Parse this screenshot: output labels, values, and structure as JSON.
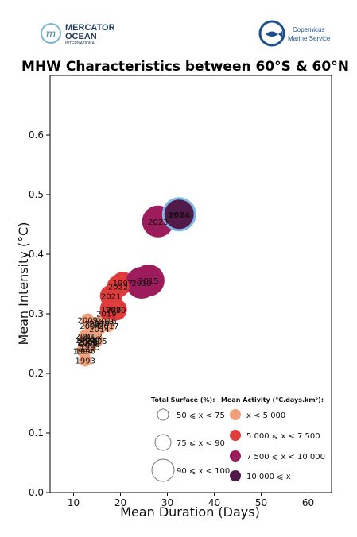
{
  "logos": {
    "mercator": {
      "line1": "MERCATOR",
      "line2": "OCEAN",
      "line3": "INTERNATIONAL"
    },
    "copernicus": {
      "line1": "Copernicus",
      "line2": "Marine Service"
    }
  },
  "chart_data": {
    "type": "scatter",
    "title": "MHW Characteristics between 60°S & 60°N",
    "xlabel": "Mean Duration (Days)",
    "ylabel": "Mean Intensity (°C)",
    "xlim": [
      5,
      65
    ],
    "ylim": [
      0,
      0.7
    ],
    "xticks": [
      10,
      20,
      30,
      40,
      50,
      60
    ],
    "yticks": [
      0.0,
      0.1,
      0.2,
      0.3,
      0.4,
      0.5,
      0.6
    ],
    "grid": false,
    "activity_colors": {
      "a1": "#f0a07a",
      "a2": "#e03c3c",
      "a3": "#9c1c5c",
      "a4": "#521a48"
    },
    "points": [
      {
        "year": "1993",
        "x": 12.5,
        "y": 0.222,
        "surface": 1,
        "activity": "a1"
      },
      {
        "year": "1994",
        "x": 12.0,
        "y": 0.238,
        "surface": 1,
        "activity": "a1"
      },
      {
        "year": "1995",
        "x": 13.5,
        "y": 0.245,
        "surface": 1,
        "activity": "a1"
      },
      {
        "year": "1996",
        "x": 12.5,
        "y": 0.238,
        "surface": 1,
        "activity": "a1"
      },
      {
        "year": "1997",
        "x": 20.5,
        "y": 0.352,
        "surface": 2,
        "activity": "a2"
      },
      {
        "year": "1998",
        "x": 18.0,
        "y": 0.308,
        "surface": 2,
        "activity": "a2"
      },
      {
        "year": "1999",
        "x": 12.5,
        "y": 0.256,
        "surface": 1,
        "activity": "a1"
      },
      {
        "year": "2000",
        "x": 13.0,
        "y": 0.253,
        "surface": 1,
        "activity": "a1"
      },
      {
        "year": "2001",
        "x": 12.5,
        "y": 0.263,
        "surface": 1,
        "activity": "a1"
      },
      {
        "year": "2002",
        "x": 13.0,
        "y": 0.254,
        "surface": 1,
        "activity": "a1"
      },
      {
        "year": "2003",
        "x": 13.0,
        "y": 0.252,
        "surface": 1,
        "activity": "a1"
      },
      {
        "year": "2004",
        "x": 13.5,
        "y": 0.28,
        "surface": 1,
        "activity": "a1"
      },
      {
        "year": "2005",
        "x": 15.0,
        "y": 0.255,
        "surface": 1,
        "activity": "a1"
      },
      {
        "year": "2006",
        "x": 13.5,
        "y": 0.258,
        "surface": 1,
        "activity": "a1"
      },
      {
        "year": "2007",
        "x": 14.5,
        "y": 0.284,
        "surface": 1,
        "activity": "a1"
      },
      {
        "year": "2008",
        "x": 13.5,
        "y": 0.25,
        "surface": 1,
        "activity": "a1"
      },
      {
        "year": "2009",
        "x": 13.0,
        "y": 0.29,
        "surface": 1,
        "activity": "a1"
      },
      {
        "year": "2010",
        "x": 24.5,
        "y": 0.352,
        "surface": 3,
        "activity": "a3"
      },
      {
        "year": "2011",
        "x": 15.5,
        "y": 0.284,
        "surface": 1,
        "activity": "a1"
      },
      {
        "year": "2012",
        "x": 14.0,
        "y": 0.263,
        "surface": 1,
        "activity": "a1"
      },
      {
        "year": "2013",
        "x": 16.5,
        "y": 0.284,
        "surface": 1,
        "activity": "a1"
      },
      {
        "year": "2014",
        "x": 15.5,
        "y": 0.275,
        "surface": 1,
        "activity": "a1"
      },
      {
        "year": "2015",
        "x": 26.0,
        "y": 0.356,
        "surface": 3,
        "activity": "a3"
      },
      {
        "year": "2016",
        "x": 17.0,
        "y": 0.289,
        "surface": 1,
        "activity": "a2"
      },
      {
        "year": "2017",
        "x": 17.5,
        "y": 0.28,
        "surface": 1,
        "activity": "a1"
      },
      {
        "year": "2018",
        "x": 15.5,
        "y": 0.285,
        "surface": 1,
        "activity": "a1"
      },
      {
        "year": "2019",
        "x": 17.0,
        "y": 0.301,
        "surface": 1,
        "activity": "a2"
      },
      {
        "year": "2020",
        "x": 19.0,
        "y": 0.307,
        "surface": 2,
        "activity": "a2"
      },
      {
        "year": "2021",
        "x": 18.0,
        "y": 0.33,
        "surface": 2,
        "activity": "a2"
      },
      {
        "year": "2022",
        "x": 19.5,
        "y": 0.346,
        "surface": 2,
        "activity": "a2"
      },
      {
        "year": "2023",
        "x": 28.0,
        "y": 0.455,
        "surface": 3,
        "activity": "a3"
      },
      {
        "year": "2024",
        "x": 32.5,
        "y": 0.467,
        "surface": 3,
        "activity": "a4",
        "highlight": true
      }
    ],
    "legend": {
      "position": "bottom-right",
      "surface_title": "Total Surface (%):",
      "surface_items": [
        "50 ⩽ x < 75",
        "75 ⩽ x < 90",
        "90 ⩽ x < 100"
      ],
      "activity_title": "Mean Activity (°C.days.km²):",
      "activity_items": [
        {
          "label": "x < 5 000",
          "activity": "a1"
        },
        {
          "label": "5 000 ⩽ x < 7 500",
          "activity": "a2"
        },
        {
          "label": "7 500 ⩽ x < 10 000",
          "activity": "a3"
        },
        {
          "label": "10 000 ⩽ x",
          "activity": "a4"
        }
      ]
    }
  }
}
